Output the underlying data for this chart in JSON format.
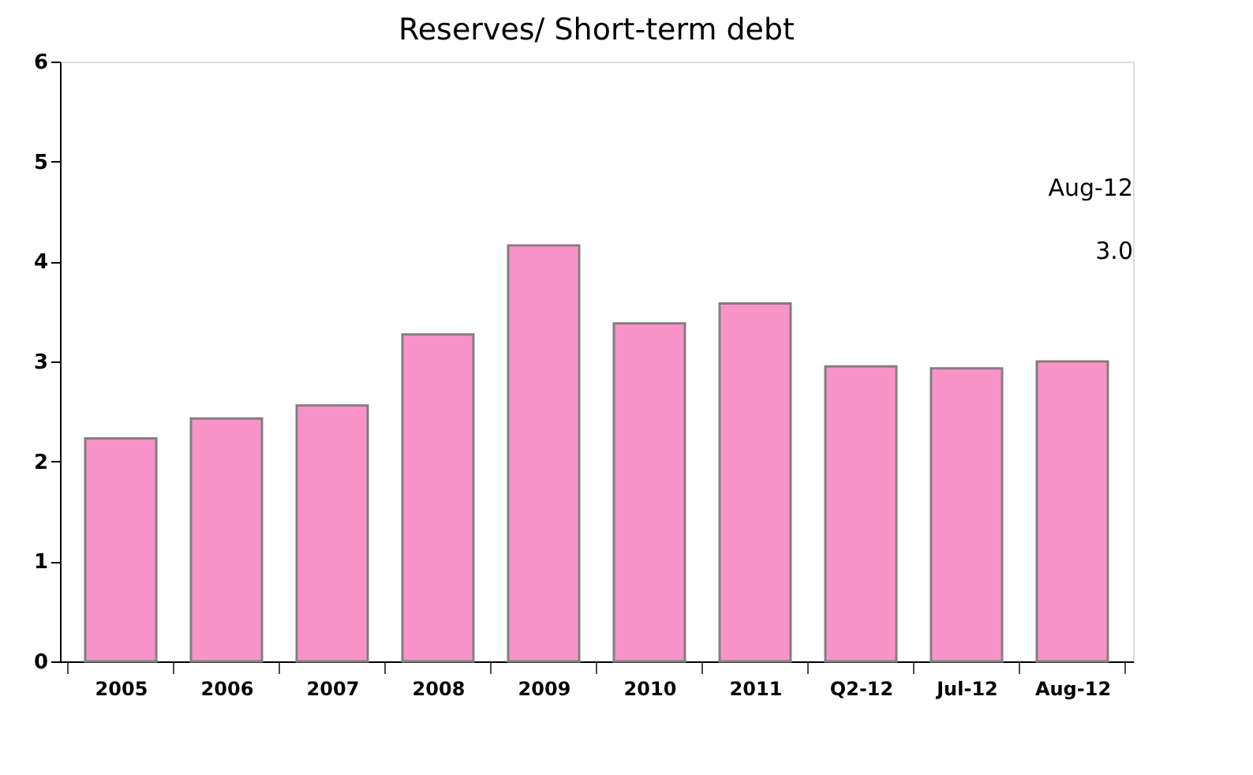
{
  "chart_data": {
    "type": "bar",
    "title": "Reserves/ Short-term debt",
    "categories": [
      "2005",
      "2006",
      "2007",
      "2008",
      "2009",
      "2010",
      "2011",
      "Q2-12",
      "Jul-12",
      "Aug-12"
    ],
    "values": [
      2.23,
      2.43,
      2.56,
      3.27,
      4.16,
      3.38,
      3.58,
      2.95,
      2.93,
      3.0
    ],
    "color": "#f994c9",
    "ylim": [
      0,
      6
    ],
    "yticks": [
      0,
      1,
      2,
      3,
      4,
      5,
      6
    ],
    "grid": false,
    "annotations": [
      "Aug-12",
      "3.0"
    ]
  }
}
